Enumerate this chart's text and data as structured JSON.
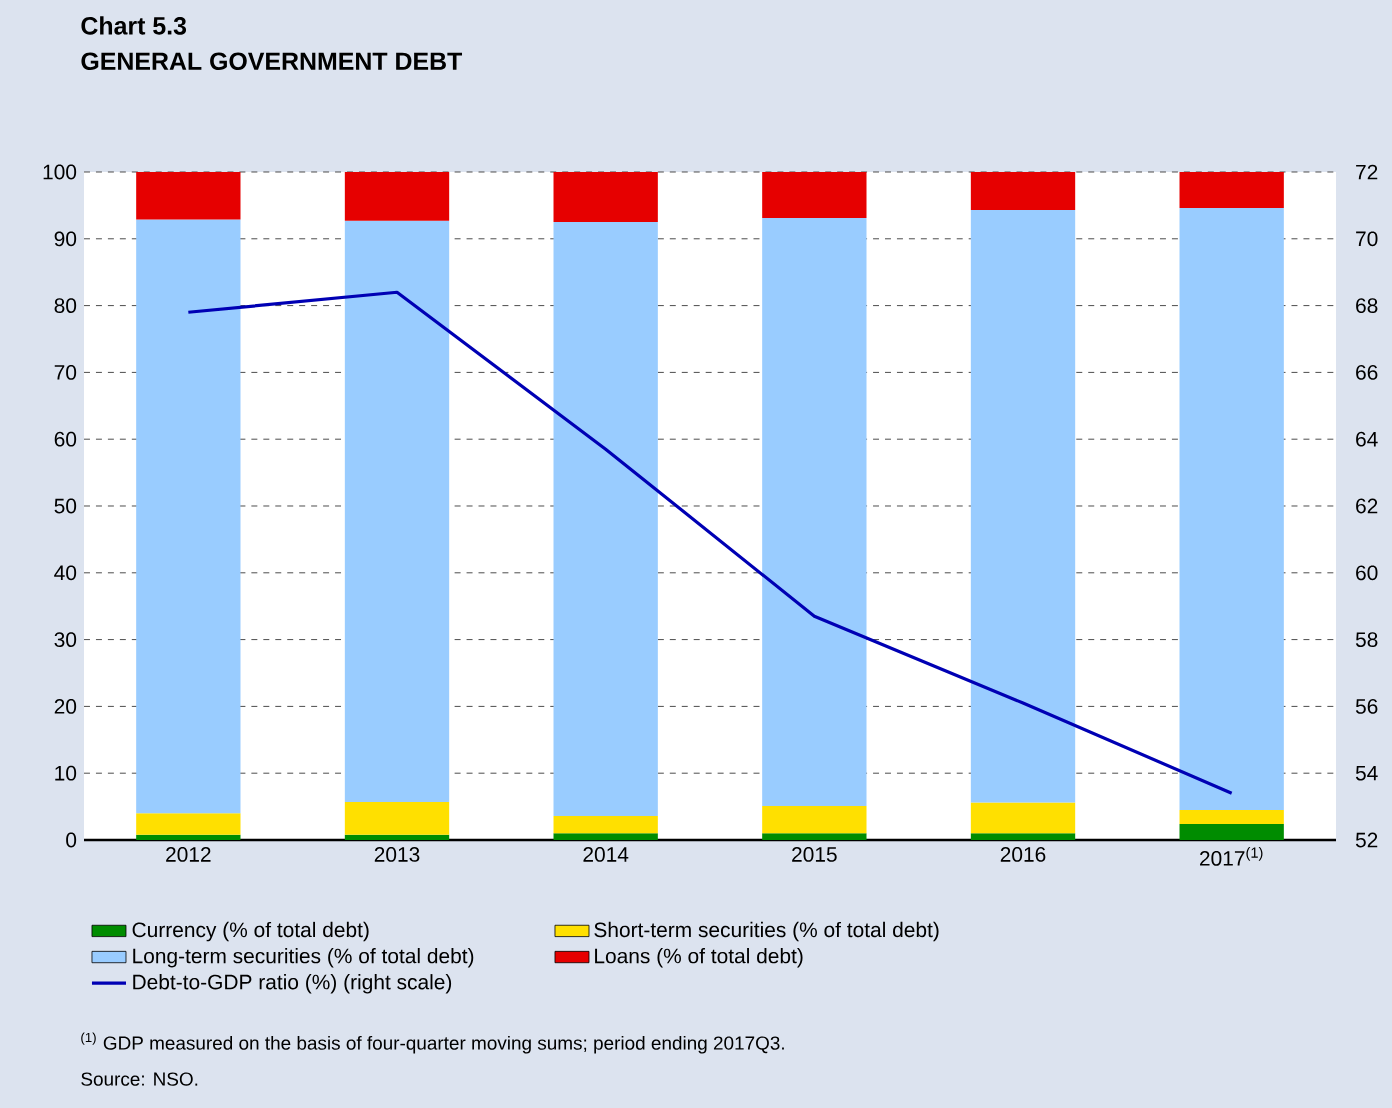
{
  "chart_data": {
    "type": "bar",
    "title": "Chart 5.3",
    "subtitle": "GENERAL GOVERNMENT DEBT",
    "categories": [
      "2012",
      "2013",
      "2014",
      "2015",
      "2016",
      "2017$^{(1)}$"
    ],
    "stacked": true,
    "series": [
      {
        "name": "Currency (% of total debt)",
        "color": "#008c00",
        "values": [
          0.8,
          0.8,
          1.0,
          1.0,
          1.0,
          2.4
        ]
      },
      {
        "name": "Short-term securities (% of total debt)",
        "color": "#ffe000",
        "values": [
          3.2,
          4.9,
          2.6,
          4.1,
          4.6,
          2.1
        ]
      },
      {
        "name": "Long-term securities (% of total debt)",
        "color": "#99ccff",
        "values": [
          88.9,
          87.0,
          88.9,
          88.0,
          88.7,
          90.1
        ]
      },
      {
        "name": "Loans (% of total debt)",
        "color": "#e60000",
        "values": [
          7.1,
          7.3,
          7.5,
          6.9,
          5.7,
          5.4
        ]
      },
      {
        "name": "Debt-to-GDP ratio (%) (right scale)",
        "color": "#0000b4",
        "type": "line",
        "axis": "y2",
        "values": [
          67.8,
          68.4,
          63.7,
          58.7,
          56.1,
          53.4
        ]
      }
    ],
    "ylim": [
      0,
      100
    ],
    "yticks": [
      0,
      10,
      20,
      30,
      40,
      50,
      60,
      70,
      80,
      90,
      100
    ],
    "y2lim": [
      52,
      72
    ],
    "y2ticks": [
      52,
      54,
      56,
      58,
      60,
      62,
      64,
      66,
      68,
      70,
      72
    ],
    "grid": "y",
    "legend": "bottom",
    "marker": "none",
    "line_style": "solid",
    "annotations": [
      "$^{(1)}$ GDP measured on the basis of four-quarter moving sums; period ending 2017Q3.",
      "Source: NSO."
    ]
  }
}
